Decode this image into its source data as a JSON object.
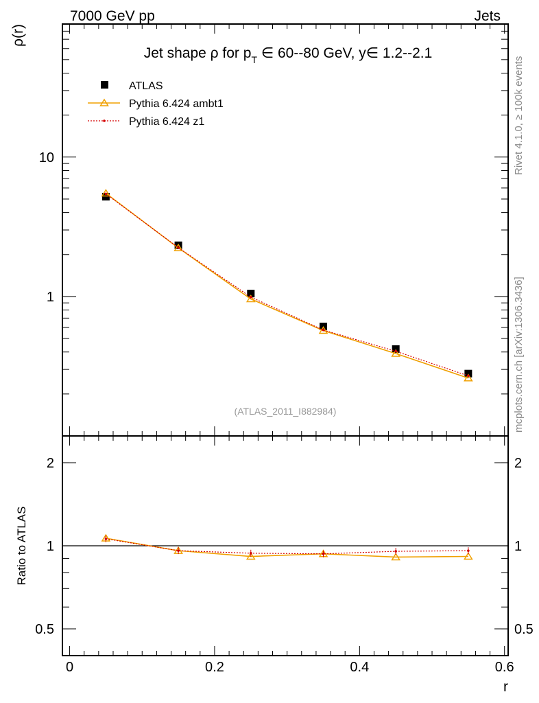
{
  "header": {
    "left": "7000 GeV pp",
    "right": "Jets"
  },
  "side_labels": {
    "rivet": "Rivet 4.1.0, ≥ 100k events",
    "mcplots": "mcplots.cern.ch [arXiv:1306.3436]"
  },
  "colors": {
    "atlas": "#000000",
    "ambt1": "#f0a000",
    "z1": "#d40000"
  },
  "chart_data": {
    "type": "line",
    "title": {
      "pre": "Jet shape ρ for p",
      "sub": "T",
      "post": " ∈ 60--80 GeV, y∈ 1.2--2.1"
    },
    "watermark": "(ATLAS_2011_I882984)",
    "x": [
      0.05,
      0.15,
      0.25,
      0.35,
      0.45,
      0.55
    ],
    "xlabel": "r",
    "xlim": [
      -0.01,
      0.605
    ],
    "xticks": [
      0,
      0.2,
      0.4,
      0.6
    ],
    "xtick_labels": [
      "0",
      "0.2",
      "0.4",
      "0.6"
    ],
    "main": {
      "ylabel": "ρ(r)",
      "yscale": "log",
      "ylim": [
        0.1,
        90
      ],
      "yticks": [
        1,
        10
      ],
      "ytick_labels": [
        "1",
        "10"
      ],
      "series": [
        {
          "name": "ATLAS",
          "key": "atlas",
          "marker": "square",
          "values": [
            5.2,
            2.33,
            1.05,
            0.61,
            0.42,
            0.28
          ]
        },
        {
          "name": "Pythia 6.424 ambt1",
          "key": "ambt1",
          "marker": "triangle",
          "line": "solid",
          "values": [
            5.5,
            2.23,
            0.96,
            0.57,
            0.39,
            0.26
          ]
        },
        {
          "name": "Pythia 6.424 z1",
          "key": "z1",
          "marker": "dot",
          "line": "dotted",
          "values": [
            5.45,
            2.24,
            0.99,
            0.575,
            0.405,
            0.27
          ]
        }
      ],
      "legend_position": "top-left"
    },
    "ratio": {
      "ylabel": "Ratio to ATLAS",
      "yscale": "log",
      "ylim": [
        0.4,
        2.5
      ],
      "yticks": [
        0.5,
        1,
        2
      ],
      "ytick_labels": [
        "0.5",
        "1",
        "2"
      ],
      "reference": 1,
      "series": [
        {
          "name": "Pythia 6.424 ambt1",
          "key": "ambt1",
          "values": [
            1.065,
            0.96,
            0.915,
            0.935,
            0.91,
            0.915
          ]
        },
        {
          "name": "Pythia 6.424 z1",
          "key": "z1",
          "values": [
            1.06,
            0.96,
            0.94,
            0.935,
            0.955,
            0.96
          ]
        }
      ]
    }
  }
}
